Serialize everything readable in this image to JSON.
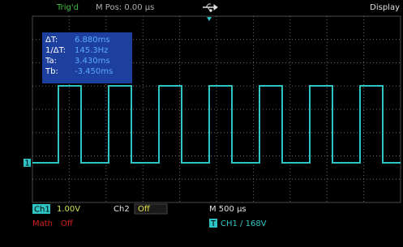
{
  "header": {
    "trigger_status": "Trig'd",
    "m_pos": "M Pos: 0.00 µs",
    "menu": "Display"
  },
  "cursor": {
    "rows": [
      [
        "ΔT:",
        "6.880ms"
      ],
      [
        "1/ΔT:",
        "145.3Hz"
      ],
      [
        "Ta:",
        "3.430ms"
      ],
      [
        "Tb:",
        "-3.450ms"
      ]
    ]
  },
  "channel_marker": "1",
  "footer": {
    "ch1_label": "Ch1",
    "ch1_scale": "1.00V",
    "ch2_label": "Ch2",
    "ch2_state": "Off",
    "timebase": "M 500 µs",
    "math_label": "Math",
    "math_state": "Off",
    "trigger_marker": "T",
    "trigger_info": "CH1  /  168V"
  }
}
